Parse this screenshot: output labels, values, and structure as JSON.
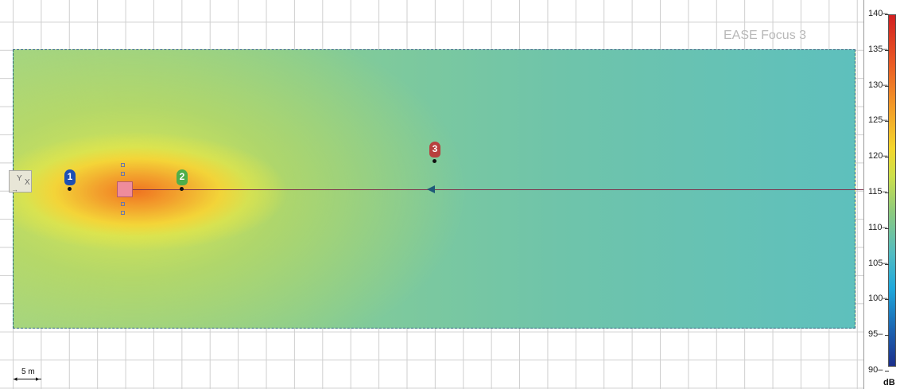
{
  "watermark": "EASE Focus 3",
  "speakers": [
    {
      "label": "1",
      "color": "#1d4fb3"
    },
    {
      "label": "2",
      "color": "#4fae4a"
    },
    {
      "label": "3",
      "color": "#b8403e"
    }
  ],
  "origin": {
    "y": "Y",
    "x": "X"
  },
  "scale": {
    "label": "5 m"
  },
  "colorbar": {
    "unit": "dB",
    "ticks": [
      "140",
      "135",
      "130",
      "125",
      "120",
      "115",
      "110",
      "105",
      "100",
      "95",
      "90"
    ],
    "colors": [
      "#d21f21",
      "#ea5b24",
      "#f39a27",
      "#f4d62b",
      "#cce04b",
      "#8dca7d",
      "#52bcc2",
      "#1ea8dc",
      "#1c62b0",
      "#1c2f8b"
    ]
  }
}
